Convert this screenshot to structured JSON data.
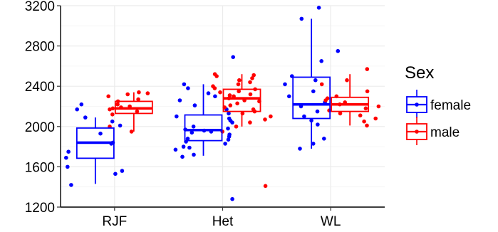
{
  "chart_data": {
    "type": "box",
    "title": "",
    "xlabel": "",
    "ylabel": "",
    "categories": [
      "RJF",
      "Het",
      "WL"
    ],
    "ylim": [
      1200,
      3200
    ],
    "yticks": [
      1200,
      1600,
      2000,
      2400,
      2800,
      3200
    ],
    "grid": true,
    "legend": {
      "title": "Sex",
      "position": "right"
    },
    "series": [
      {
        "name": "female",
        "color": "#0000ff",
        "boxes": [
          {
            "category": "RJF",
            "whisker_low": 1430,
            "q1": 1685,
            "median": 1840,
            "q3": 1985,
            "whisker_high": 2090
          },
          {
            "category": "Het",
            "whisker_low": 1710,
            "q1": 1860,
            "median": 1965,
            "q3": 2115,
            "whisker_high": 2420
          },
          {
            "category": "WL",
            "whisker_low": 1780,
            "q1": 2080,
            "median": 2220,
            "q3": 2490,
            "whisker_high": 3070
          }
        ],
        "points": [
          {
            "category": "RJF",
            "values": [
              1420,
              1530,
              1560,
              1600,
              1690,
              1750,
              1830,
              1930,
              2010,
              2050,
              2090,
              2170,
              2220,
              1840
            ]
          },
          {
            "category": "Het",
            "values": [
              1280,
              1700,
              1720,
              1770,
              1790,
              1800,
              1830,
              1850,
              1870,
              1880,
              1900,
              1920,
              1940,
              1950,
              1960,
              1970,
              1980,
              2000,
              2040,
              2060,
              2080,
              2100,
              2130,
              2170,
              2210,
              2260,
              2300,
              2330,
              2380,
              2420,
              2690
            ]
          },
          {
            "category": "WL",
            "values": [
              1780,
              1830,
              1880,
              2020,
              2060,
              2100,
              2150,
              2200,
              2240,
              2300,
              2350,
              2420,
              2460,
              2500,
              2650,
              2750,
              3070,
              3180
            ]
          }
        ]
      },
      {
        "name": "male",
        "color": "#ff0000",
        "boxes": [
          {
            "category": "RJF",
            "whisker_low": 1950,
            "q1": 2130,
            "median": 2180,
            "q3": 2250,
            "whisker_high": 2340
          },
          {
            "category": "Het",
            "whisker_low": 2000,
            "q1": 2150,
            "median": 2280,
            "q3": 2370,
            "whisker_high": 2520
          },
          {
            "category": "WL",
            "whisker_low": 2010,
            "q1": 2150,
            "median": 2220,
            "q3": 2290,
            "whisker_high": 2520
          }
        ],
        "points": [
          {
            "category": "RJF",
            "values": [
              1950,
              2000,
              2120,
              2150,
              2170,
              2180,
              2200,
              2220,
              2250,
              2270,
              2300,
              2330,
              2340,
              2320,
              2190
            ]
          },
          {
            "category": "Het",
            "values": [
              1410,
              1950,
              2000,
              2040,
              2070,
              2100,
              2130,
              2150,
              2170,
              2190,
              2210,
              2230,
              2250,
              2260,
              2280,
              2300,
              2310,
              2320,
              2340,
              2350,
              2370,
              2380,
              2400,
              2420,
              2440,
              2460,
              2480,
              2500,
              2510,
              2520
            ]
          },
          {
            "category": "WL",
            "values": [
              2010,
              2050,
              2080,
              2110,
              2130,
              2160,
              2180,
              2200,
              2220,
              2240,
              2260,
              2280,
              2300,
              2350,
              2420,
              2460,
              2570
            ]
          }
        ]
      }
    ]
  }
}
